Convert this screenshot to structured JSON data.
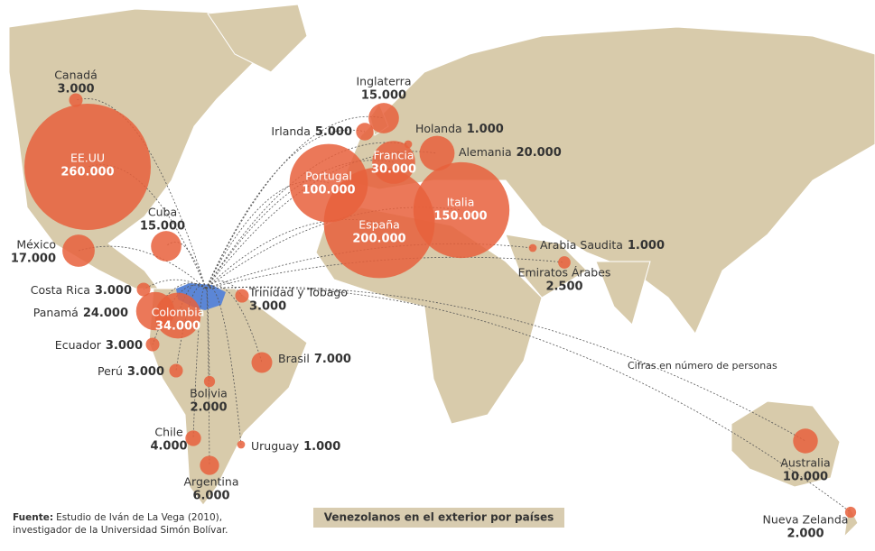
{
  "title": "Venezolanos en el exterior por países",
  "note": "Cifras en número de personas",
  "source": {
    "label": "Fuente:",
    "line1": "Estudio de Iván de La Vega (2010),",
    "line2": "investigador de la Universidad Simón Bolívar."
  },
  "countries": [
    {
      "name": "Canadá",
      "value": 3000,
      "label": "3.000"
    },
    {
      "name": "EE.UU",
      "value": 260000,
      "label": "260.000"
    },
    {
      "name": "México",
      "value": 17000,
      "label": "17.000"
    },
    {
      "name": "Cuba",
      "value": 15000,
      "label": "15.000"
    },
    {
      "name": "Costa Rica",
      "value": 3000,
      "label": "3.000"
    },
    {
      "name": "Panamá",
      "value": 24000,
      "label": "24.000"
    },
    {
      "name": "Colombia",
      "value": 34000,
      "label": "34.000"
    },
    {
      "name": "Ecuador",
      "value": 3000,
      "label": "3.000"
    },
    {
      "name": "Perú",
      "value": 3000,
      "label": "3.000"
    },
    {
      "name": "Bolivia",
      "value": 2000,
      "label": "2.000"
    },
    {
      "name": "Chile",
      "value": 4000,
      "label": "4.000"
    },
    {
      "name": "Argentina",
      "value": 6000,
      "label": "6.000"
    },
    {
      "name": "Uruguay",
      "value": 1000,
      "label": "1.000"
    },
    {
      "name": "Trinidad y Tobago",
      "value": 3000,
      "label": "3.000"
    },
    {
      "name": "Brasil",
      "value": 7000,
      "label": "7.000"
    },
    {
      "name": "Irlanda",
      "value": 5000,
      "label": "5.000"
    },
    {
      "name": "Inglaterra",
      "value": 15000,
      "label": "15.000"
    },
    {
      "name": "Holanda",
      "value": 1000,
      "label": "1.000"
    },
    {
      "name": "Francia",
      "value": 30000,
      "label": "30.000"
    },
    {
      "name": "Alemania",
      "value": 20000,
      "label": "20.000"
    },
    {
      "name": "Portugal",
      "value": 100000,
      "label": "100.000"
    },
    {
      "name": "España",
      "value": 200000,
      "label": "200.000"
    },
    {
      "name": "Italia",
      "value": 150000,
      "label": "150.000"
    },
    {
      "name": "Arabia Saudita",
      "value": 1000,
      "label": "1.000"
    },
    {
      "name": "Emiratos Árabes",
      "value": 2500,
      "label": "2.500"
    },
    {
      "name": "Australia",
      "value": 10000,
      "label": "10.000"
    },
    {
      "name": "Nueva Zelanda",
      "value": 2000,
      "label": "2.000"
    }
  ]
}
